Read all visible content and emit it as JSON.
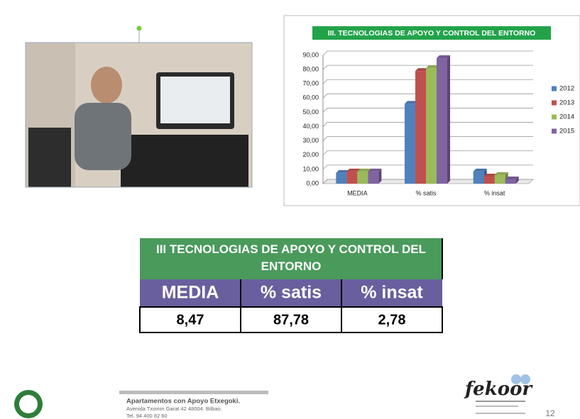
{
  "chart_data": {
    "type": "bar",
    "title": "III. TECNOLOGIAS DE APOYO Y CONTROL DEL ENTORNO",
    "categories": [
      "MEDIA",
      "% satis",
      "% insat"
    ],
    "series": [
      {
        "name": "2012",
        "color": "#4f81bd",
        "values": [
          7.5,
          56,
          8.5
        ]
      },
      {
        "name": "2013",
        "color": "#c0504d",
        "values": [
          8.5,
          79,
          5
        ]
      },
      {
        "name": "2014",
        "color": "#9bbb59",
        "values": [
          8.5,
          81,
          6
        ]
      },
      {
        "name": "2015",
        "color": "#8064a2",
        "values": [
          8.5,
          88,
          3
        ]
      }
    ],
    "ylim": [
      0,
      90
    ],
    "yticks": [
      {
        "value": 0,
        "label": "0,00"
      },
      {
        "value": 10,
        "label": "10,00"
      },
      {
        "value": 20,
        "label": "20,00"
      },
      {
        "value": 30,
        "label": "30,00"
      },
      {
        "value": 40,
        "label": "40,00"
      },
      {
        "value": 50,
        "label": "50,00"
      },
      {
        "value": 60,
        "label": "60,00"
      },
      {
        "value": 70,
        "label": "70,00"
      },
      {
        "value": 80,
        "label": "80,00"
      },
      {
        "value": 90,
        "label": "90,00"
      }
    ],
    "grid": true,
    "legend": "right"
  },
  "table": {
    "title": "III  TECNOLOGIAS DE APOYO Y CONTROL DEL ENTORNO",
    "headers": [
      "MEDIA",
      "% satis",
      "% insat"
    ],
    "rows": [
      [
        "8,47",
        "87,78",
        "2,78"
      ]
    ]
  },
  "footer": {
    "name": "Apartamentos con Apoyo Etxegoki.",
    "address": "Avenida Txomin Garat 42  48004. Bilbao.",
    "phone": "Tel. 94 400 82 60",
    "logo": "fekoor",
    "page": "12"
  }
}
